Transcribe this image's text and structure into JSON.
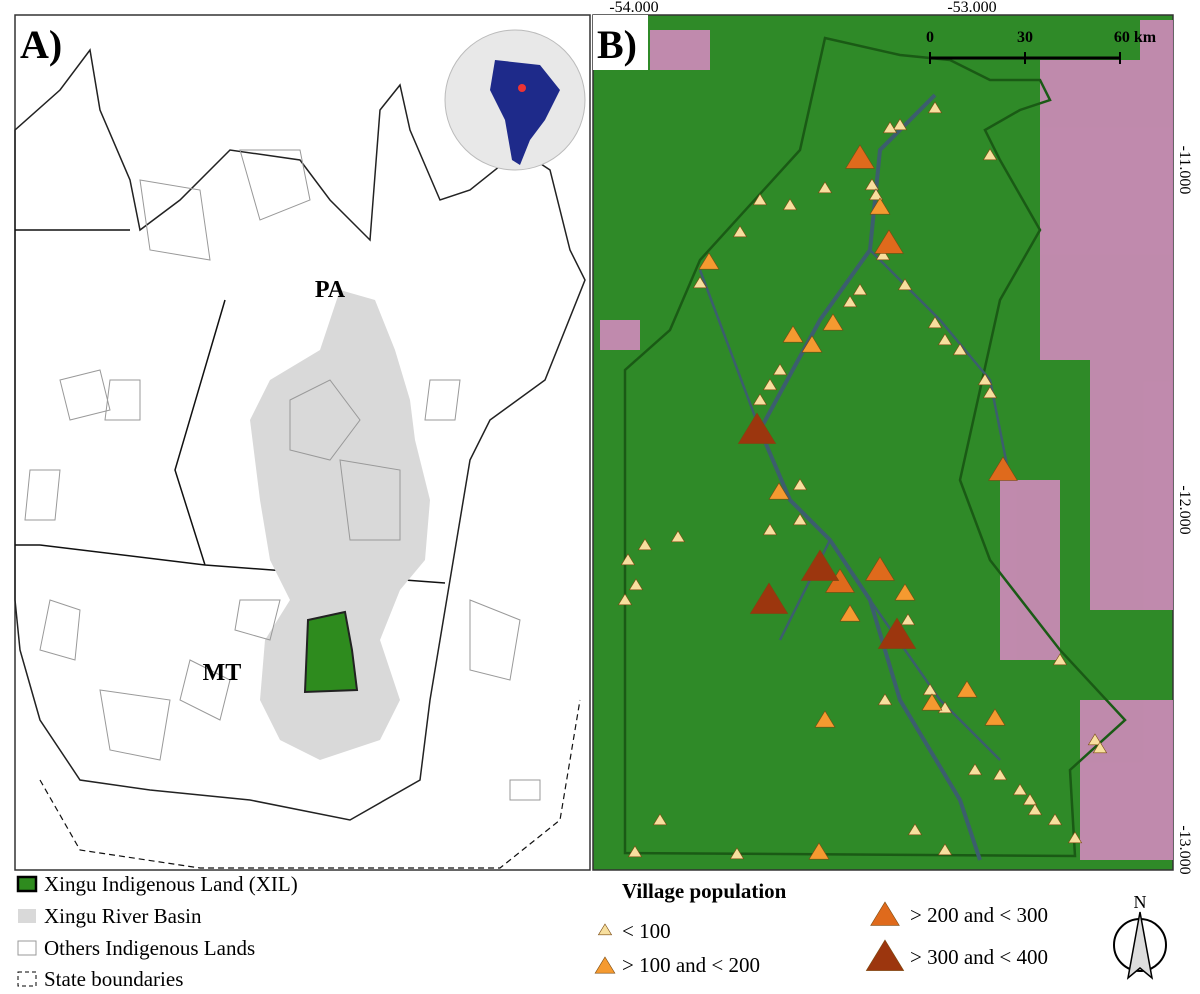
{
  "panels": {
    "a": {
      "label": "A)",
      "states": [
        "PA",
        "MT"
      ]
    },
    "b": {
      "label": "B)",
      "lon_labels": [
        "-54.000",
        "-53.000"
      ],
      "lat_labels": [
        "-11.000",
        "-12.000",
        "-13.000"
      ],
      "scale_labels": [
        "0",
        "30",
        "60 km"
      ]
    }
  },
  "legend": {
    "layers": [
      "Xingu Indigenous Land (XIL)",
      "Xingu River Basin",
      "Others Indigenous Lands",
      "State boundaries"
    ],
    "village_title": "Village population",
    "village_classes": [
      "< 100",
      "> 100 and < 200",
      "> 200 and < 300",
      "> 300 and < 400"
    ],
    "north": "N"
  }
}
